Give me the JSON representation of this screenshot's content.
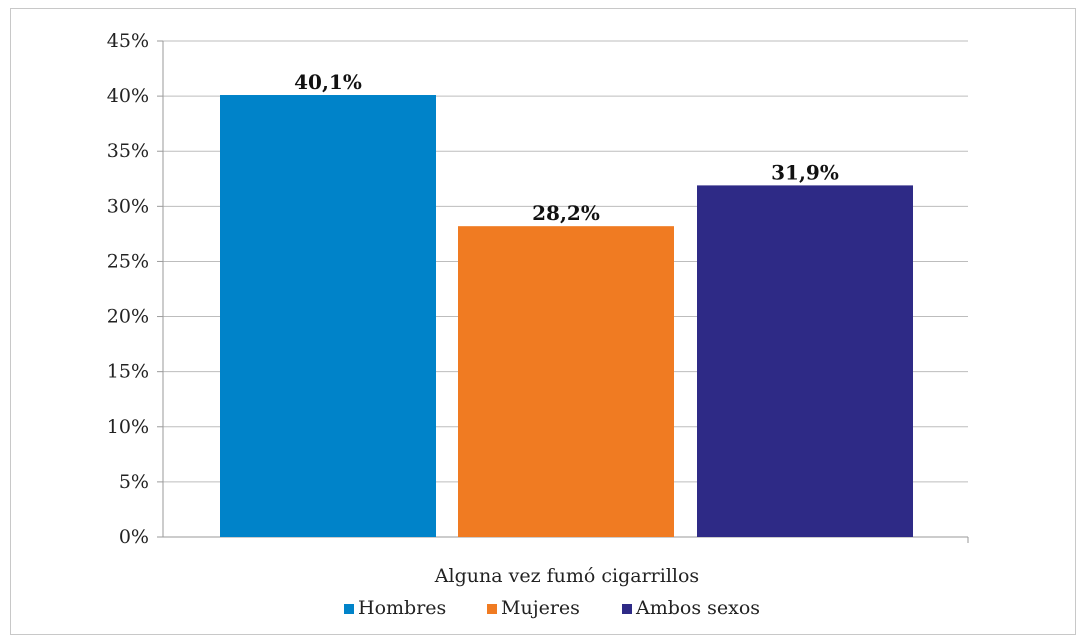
{
  "chart_data": {
    "type": "bar",
    "categories": [
      "Alguna vez fumó cigarrillos"
    ],
    "series": [
      {
        "name": "Hombres",
        "values": [
          40.1
        ],
        "label": "40,1%",
        "color": "#0083c9"
      },
      {
        "name": "Mujeres",
        "values": [
          28.2
        ],
        "label": "28,2%",
        "color": "#f07b22"
      },
      {
        "name": "Ambos sexos",
        "values": [
          31.9
        ],
        "label": "31,9%",
        "color": "#2e2a86"
      }
    ],
    "yticks": [
      0,
      5,
      10,
      15,
      20,
      25,
      30,
      35,
      40,
      45
    ],
    "ytick_labels": [
      "0%",
      "5%",
      "10%",
      "15%",
      "20%",
      "25%",
      "30%",
      "35%",
      "40%",
      "45%"
    ],
    "ylim": [
      0,
      45
    ],
    "grid": true,
    "legend": "bottom"
  }
}
